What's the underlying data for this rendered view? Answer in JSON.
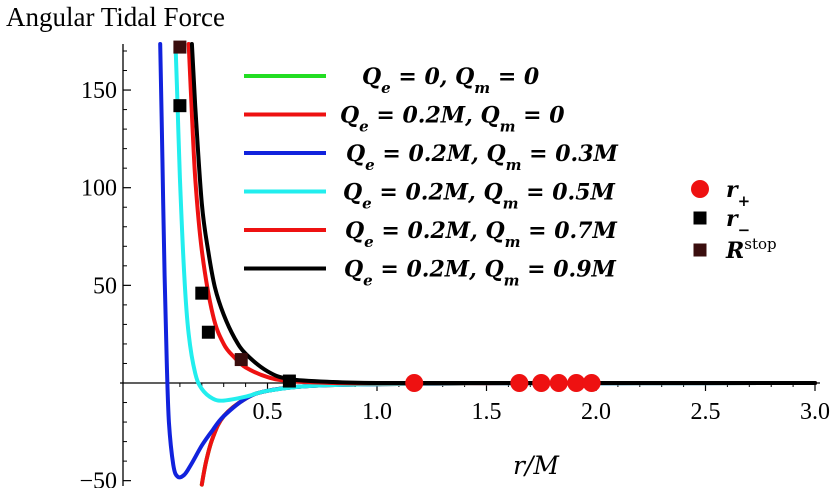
{
  "chart_data": {
    "type": "line",
    "title": "Angular Tidal Force",
    "xlabel": "r/M",
    "ylabel": "",
    "xlim": [
      -0.1,
      3.0
    ],
    "ylim": [
      -52,
      178
    ],
    "x_ticks": [
      {
        "value": 0.5,
        "label": "0.5"
      },
      {
        "value": 1.0,
        "label": "1.0"
      },
      {
        "value": 1.5,
        "label": "1.5"
      },
      {
        "value": 2.0,
        "label": "2.0"
      },
      {
        "value": 2.5,
        "label": "2.5"
      },
      {
        "value": 3.0,
        "label": "3.0"
      }
    ],
    "y_ticks": [
      {
        "value": -50,
        "label": "−50"
      },
      {
        "value": 50,
        "label": "50"
      },
      {
        "value": 100,
        "label": "100"
      },
      {
        "value": 150,
        "label": "150"
      }
    ],
    "grid": false,
    "series": [
      {
        "name": "Q_e = 0, Q_m = 0",
        "color": "#22dd22",
        "x": [
          0.2,
          0.22,
          0.25,
          0.3,
          0.4,
          0.5,
          0.7,
          1.0,
          1.5,
          2.0,
          3.0
        ],
        "y": [
          -52,
          -40,
          -28,
          -17,
          -8,
          -4,
          -1.5,
          -0.6,
          -0.2,
          -0.1,
          0
        ]
      },
      {
        "name": "Q_e = 0.2M, Q_m = 0",
        "color": "#ee1111",
        "x": [
          0.2,
          0.22,
          0.25,
          0.3,
          0.4,
          0.5,
          0.7,
          1.0,
          1.5,
          2.0,
          3.0
        ],
        "y": [
          -52,
          -40,
          -28,
          -17,
          -8,
          -4,
          -1.5,
          -0.6,
          -0.2,
          -0.1,
          0
        ]
      },
      {
        "name": "Q_e = 0.2M, Q_m = 0.3M",
        "color": "#1122dd",
        "x": [
          0.01,
          0.02,
          0.03,
          0.04,
          0.05,
          0.07,
          0.09,
          0.12,
          0.15,
          0.2,
          0.25,
          0.3,
          0.4,
          0.5,
          0.7,
          1.0,
          1.5,
          2.0,
          3.0
        ],
        "y": [
          178,
          115,
          55,
          10,
          -20,
          -42,
          -48,
          -47,
          -42,
          -32,
          -24,
          -17,
          -8,
          -4,
          -1.5,
          -0.6,
          -0.2,
          -0.1,
          0
        ]
      },
      {
        "name": "Q_e = 0.2M, Q_m = 0.5M",
        "color": "#22eeee",
        "x": [
          0.08,
          0.09,
          0.1,
          0.12,
          0.14,
          0.17,
          0.2,
          0.25,
          0.3,
          0.4,
          0.5,
          0.7,
          1.0,
          1.5,
          2.0,
          3.0
        ],
        "y": [
          178,
          140,
          105,
          55,
          25,
          5,
          -3,
          -8,
          -9,
          -7,
          -4,
          -1.5,
          -0.6,
          -0.2,
          -0.1,
          0
        ]
      },
      {
        "name": "Q_e = 0.2M, Q_m = 0.7M",
        "color": "#ee1111",
        "x": [
          0.14,
          0.15,
          0.17,
          0.2,
          0.25,
          0.3,
          0.35,
          0.4,
          0.5,
          0.6,
          0.8,
          1.0,
          1.5,
          2.0,
          3.0
        ],
        "y": [
          178,
          150,
          105,
          68,
          35,
          20,
          13,
          8,
          3,
          1,
          0,
          -0.2,
          -0.1,
          0,
          0
        ]
      },
      {
        "name": "Q_e = 0.2M, Q_m = 0.9M",
        "color": "#000000",
        "x": [
          0.155,
          0.17,
          0.2,
          0.23,
          0.26,
          0.3,
          0.35,
          0.4,
          0.5,
          0.6,
          0.8,
          1.0,
          1.5,
          2.0,
          3.0
        ],
        "y": [
          178,
          142,
          92,
          67,
          49,
          35,
          23,
          15,
          6,
          2,
          0.5,
          0,
          0,
          0,
          0
        ]
      }
    ],
    "markers": [
      {
        "name": "r_+",
        "shape": "circle",
        "color": "#ee1111",
        "points": [
          [
            1.17,
            0
          ],
          [
            1.65,
            0
          ],
          [
            1.75,
            0
          ],
          [
            1.83,
            0
          ],
          [
            1.91,
            0
          ],
          [
            1.98,
            0
          ]
        ]
      },
      {
        "name": "r_−",
        "shape": "square",
        "color": "#000000",
        "points": [
          [
            0.1,
            142
          ],
          [
            0.2,
            46
          ],
          [
            0.23,
            26
          ],
          [
            0.6,
            1
          ]
        ]
      },
      {
        "name": "R^stop",
        "shape": "square",
        "color": "#3a0d0d",
        "points": [
          [
            0.1,
            172
          ],
          [
            0.38,
            12
          ]
        ]
      }
    ],
    "legend": {
      "placement": "top-center",
      "lines": [
        {
          "qe": "Q_e = 0",
          "qm": "Q_m = 0",
          "color": "#22dd22"
        },
        {
          "qe": "Q_e = 0.2M",
          "qm": "Q_m = 0",
          "color": "#ee1111"
        },
        {
          "qe": "Q_e = 0.2M",
          "qm": "Q_m = 0.3M",
          "color": "#1122dd"
        },
        {
          "qe": "Q_e = 0.2M",
          "qm": "Q_m = 0.5M",
          "color": "#22eeee"
        },
        {
          "qe": "Q_e = 0.2M",
          "qm": "Q_m = 0.7M",
          "color": "#ee1111"
        },
        {
          "qe": "Q_e = 0.2M",
          "qm": "Q_m = 0.9M",
          "color": "#000000"
        }
      ],
      "marker_placement": "right",
      "marker_labels": [
        {
          "base": "r",
          "sub": "+",
          "sup": "",
          "shape": "circle",
          "color": "#ee1111"
        },
        {
          "base": "r",
          "sub": "−",
          "sup": "",
          "shape": "square",
          "color": "#000000"
        },
        {
          "base": "R",
          "sub": "",
          "sup": "stop",
          "shape": "square",
          "color": "#3a0d0d"
        }
      ]
    }
  }
}
